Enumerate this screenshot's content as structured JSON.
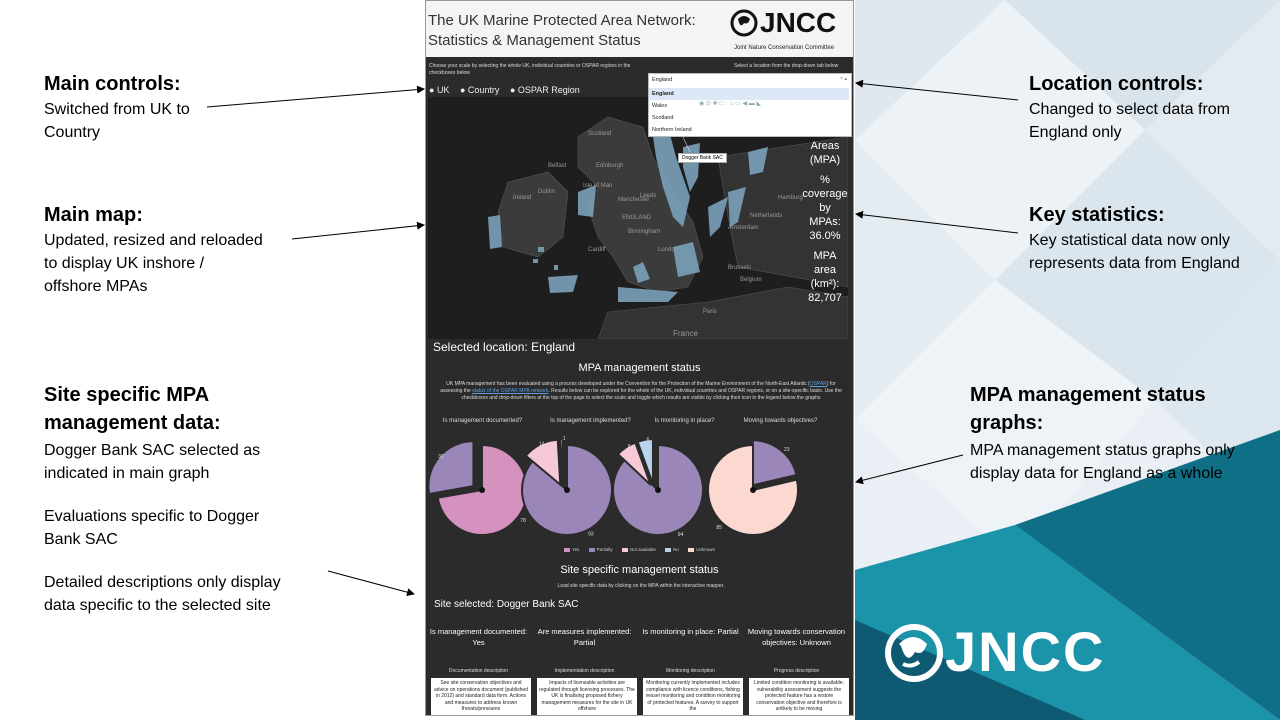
{
  "annotations": {
    "main_controls": {
      "title": "Main controls:",
      "lines": [
        "Switched from UK to",
        "Country"
      ]
    },
    "main_map": {
      "title": "Main map:",
      "lines": [
        "Updated, resized and reloaded",
        "to display UK inshore /",
        "offshore MPAs"
      ]
    },
    "site_specific": {
      "title": "Site specific MPA",
      "title2": "management data:",
      "p1": [
        "Dogger Bank SAC selected as",
        "indicated in main graph"
      ],
      "p2": [
        "Evaluations specific to Dogger",
        "Bank SAC"
      ],
      "p3": [
        "Detailed descriptions only display",
        "data specific to the selected site"
      ]
    },
    "location_controls": {
      "title": "Location controls:",
      "lines": [
        "Changed to select data from",
        "England only"
      ]
    },
    "key_statistics": {
      "title": "Key statistics:",
      "lines": [
        "Key statistical data now only",
        "represents data from England"
      ]
    },
    "graphs": {
      "title": "MPA management status",
      "title2": "graphs:",
      "lines": [
        "MPA management status graphs only",
        "display data for England as a whole"
      ]
    }
  },
  "app": {
    "title_line1": "The UK Marine Protected Area Network:",
    "title_line2": "Statistics & Management Status",
    "logo_word": "JNCC",
    "logo_sub": "Joint Nature Conservation Committee",
    "scale_instruction": "Choose your scale by selecting the whole UK, individual countries or OSPAR regions in the checkboxes below",
    "location_instruction": "Select a location from the drop-down tab below",
    "radio": [
      "UK",
      "Country",
      "OSPAR Region"
    ],
    "dropdown": {
      "value": "England",
      "options": [
        "England",
        "Wales",
        "Scotland",
        "Northern Ireland"
      ]
    },
    "tooltip": "Dogger Bank SAC",
    "map_labels": [
      "Scotland",
      "Edinburgh",
      "Ireland",
      "Dublin",
      "ENGLAND",
      "London",
      "Manchester",
      "Belfast",
      "Leeds",
      "Birmingham",
      "Amsterdam",
      "Netherlands",
      "Paris",
      "France",
      "Brussels",
      "Belgium",
      "Hamburg",
      "Cardiff",
      "Isle of Man"
    ],
    "stats": [
      "Protected",
      "Areas",
      "(MPA)",
      "%",
      "coverage",
      "by",
      "MPAs:",
      "36.0%",
      "MPA",
      "area",
      "(km²):",
      "82,707"
    ],
    "selected_location": "Selected location: England",
    "mgmt_title": "MPA management status",
    "mgmt_para_a": "UK MPA management has been evaluated using a process developed under the Convention for the Protection of the Marine Environment of the North-East Atlantic (",
    "mgmt_para_link1": "OSPAR",
    "mgmt_para_b": ") for assessing the ",
    "mgmt_para_link2": "status of the OSPAR MPA network",
    "mgmt_para_c": ". Results below can be explored for the whole of the UK, individual countries and OSPAR regions, or on a site-specific basis. Use the checkboxes and drop-down filters at the top of the page to select the scale and toggle which results are visible by clicking their icon in the legend below the graphs",
    "site_title": "Site specific management status",
    "site_instruction": "Load site specific data by clicking on the MPA within the interactive mapper.",
    "site_selected": "Site selected: Dogger Bank SAC",
    "columns": [
      {
        "status": "Is management documented: Yes",
        "desc_header": "Documentation description",
        "desc": "See site conservation objectives and advice on operations document (published in 2012) and standard data form. Actions and measures to address known threats/pressures"
      },
      {
        "status": "Are measures implemented: Partial",
        "desc_header": "Implementation description",
        "desc": "Impacts of licensable activities are regulated through licensing processes. The UK is finalising proposed fishery management measures for the site in UK offshore"
      },
      {
        "status": "Is monitoring in place: Partial",
        "desc_header": "Monitoring description",
        "desc": "Monitoring currently implemented includes compliance with licence conditions, fishing vessel monitoring and condition monitoring of protected features. A survey to support the"
      },
      {
        "status": "Moving towards conservation objectives: Unknown",
        "desc_header": "Progress description",
        "desc": "Limited condition monitoring is available; vulnerability assessment suggests the protected feature has a restore conservation objective and therefore is unlikely to be moving"
      }
    ],
    "legend": [
      "Yes",
      "Partially",
      "Not available",
      "No",
      "Unknown"
    ]
  },
  "chart_data": {
    "type": "pie",
    "categories": [
      "Yes",
      "Partially",
      "Not available",
      "No",
      "Unknown"
    ],
    "colors": [
      "#d692be",
      "#9a86b8",
      "#f7c9d6",
      "#b8d4ec",
      "#fbd8d0"
    ],
    "charts": [
      {
        "title": "Is management documented?",
        "values": [
          78,
          30,
          0,
          0,
          0
        ]
      },
      {
        "title": "Is management implemented?",
        "values": [
          0,
          93,
          14,
          1,
          0
        ]
      },
      {
        "title": "Is monitoring in place?",
        "values": [
          0,
          94,
          8,
          6,
          0
        ]
      },
      {
        "title": "Moving towards objectives?",
        "values": [
          0,
          23,
          0,
          0,
          85
        ]
      }
    ]
  },
  "big_logo": "JNCC"
}
